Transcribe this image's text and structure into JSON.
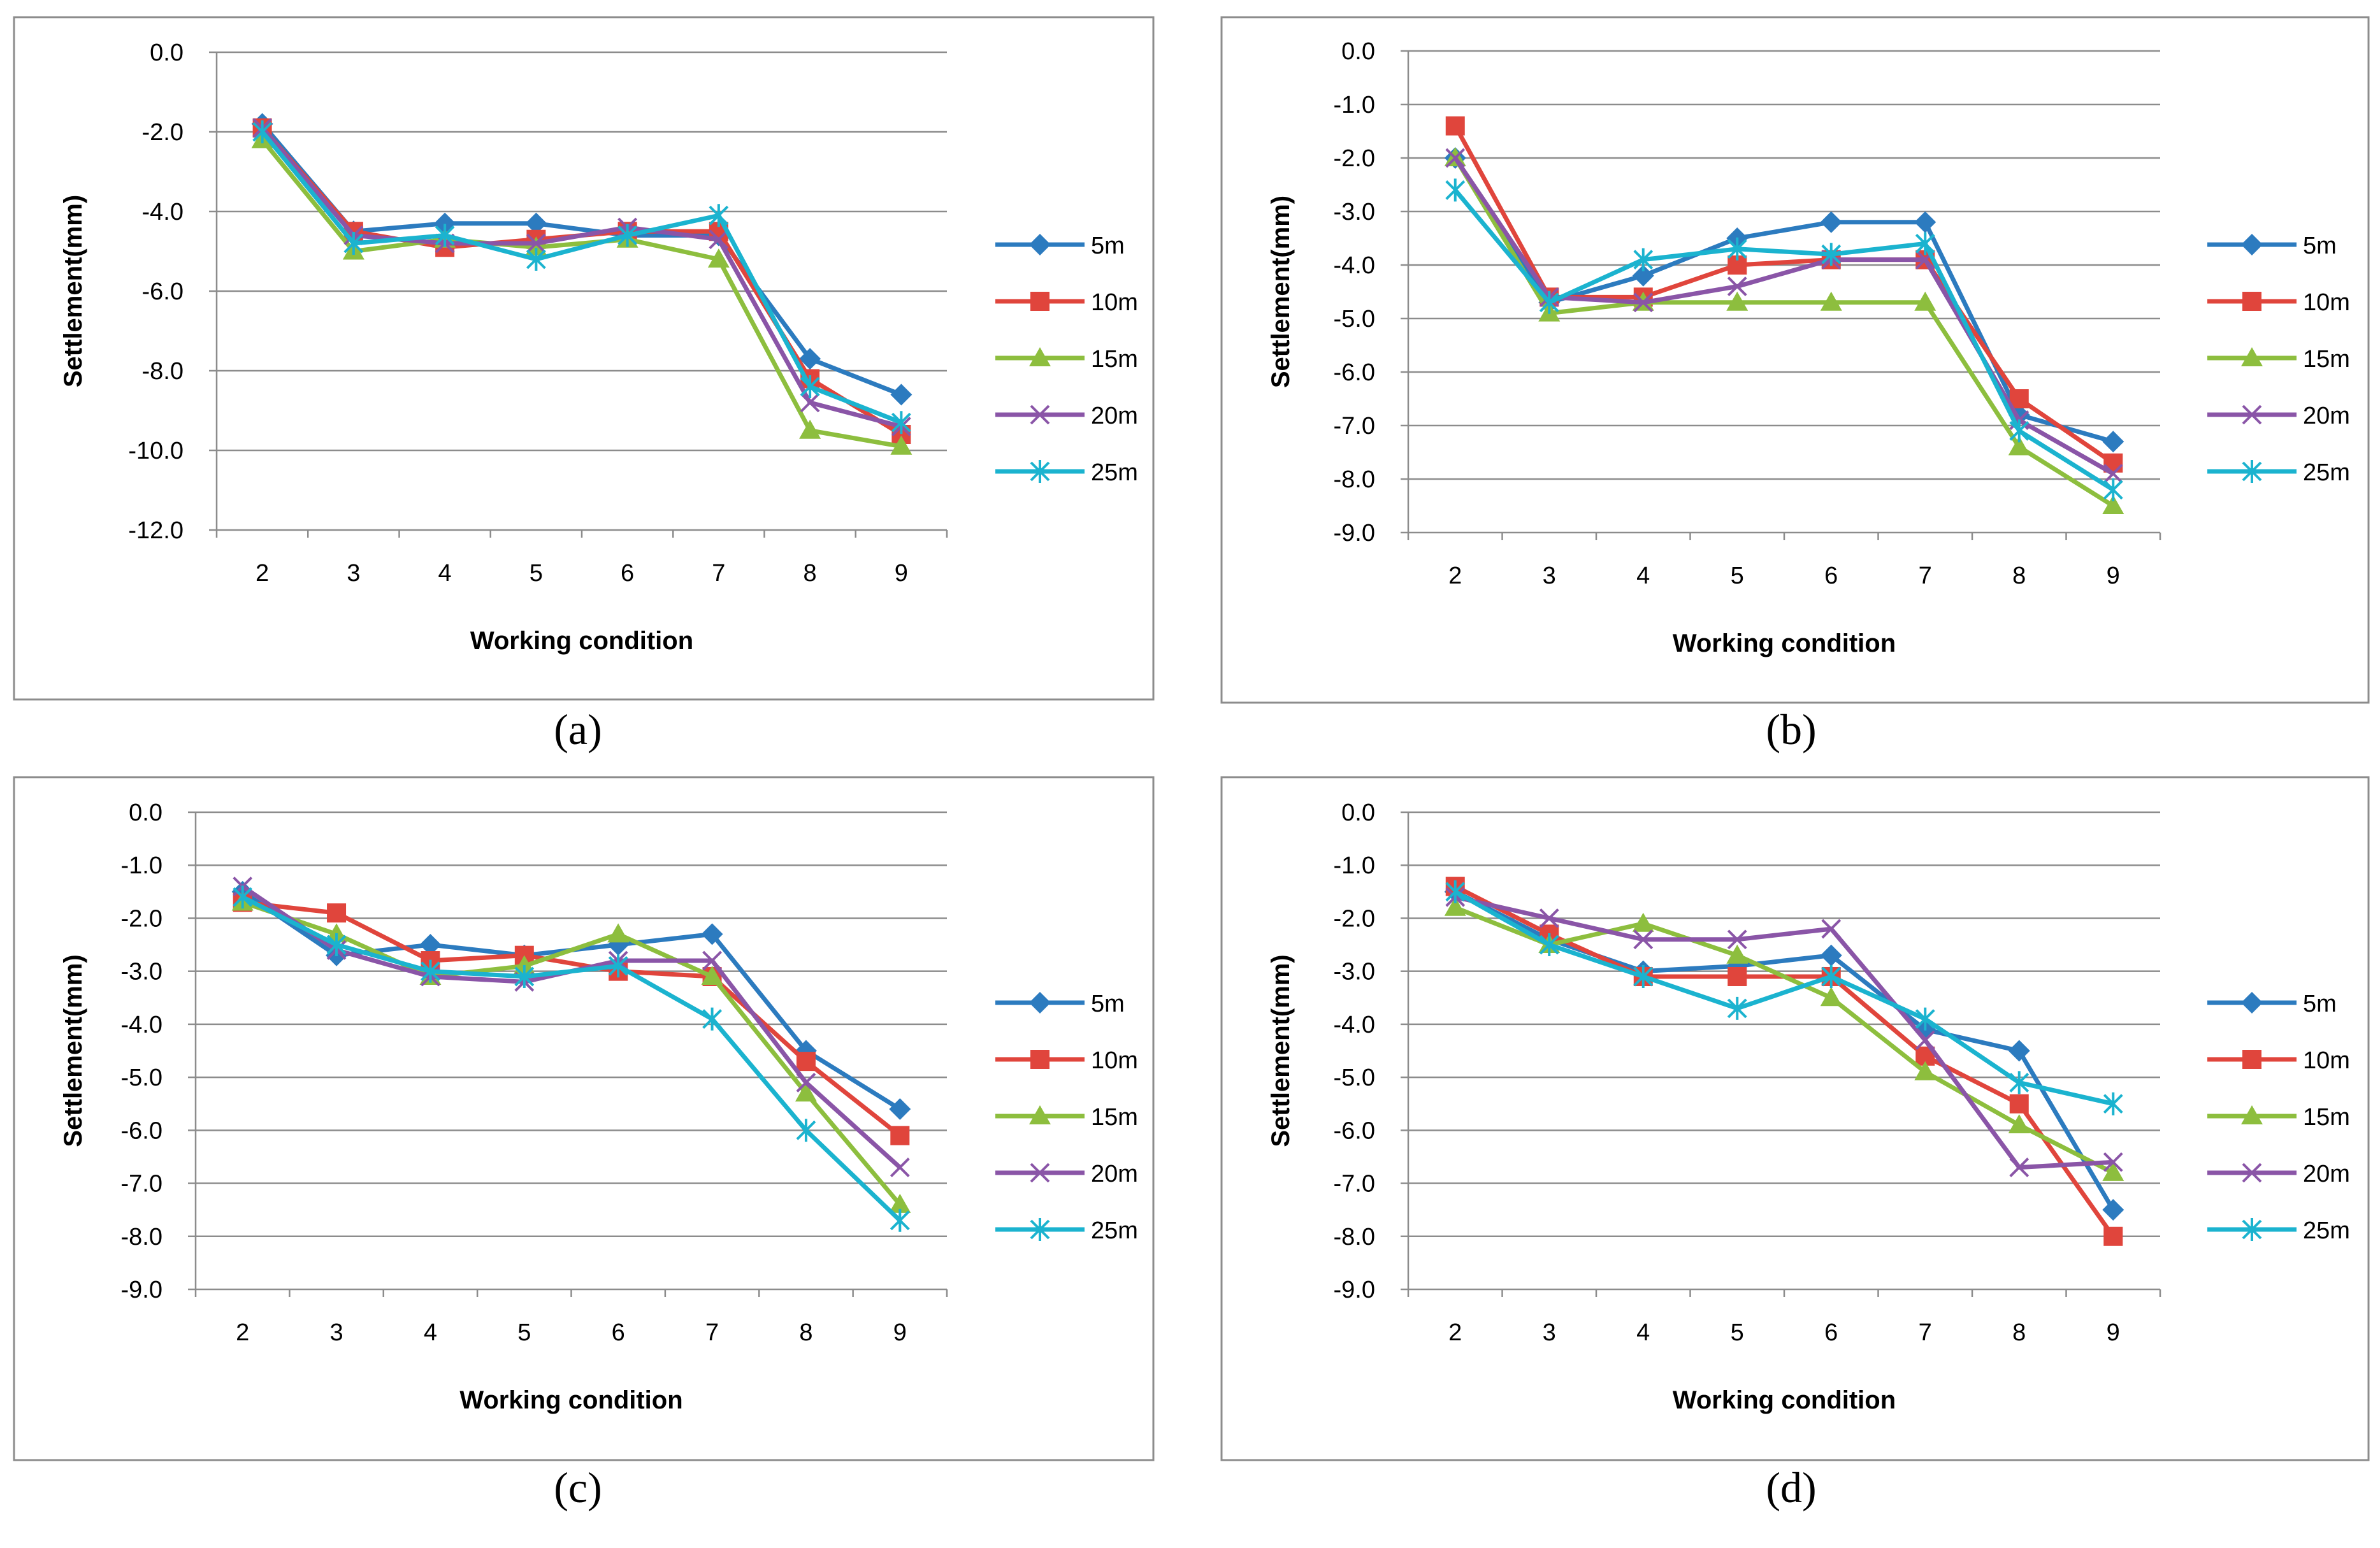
{
  "colors": {
    "5m": "#2C7BBF",
    "10m": "#E0453C",
    "15m": "#8DBE3E",
    "20m": "#8A55A7",
    "25m": "#1BB3CF",
    "grid": "#8c8c8c",
    "frame": "#8c8c8c"
  },
  "chart_data": [
    {
      "id": "a",
      "caption": "(a)",
      "type": "line",
      "xlabel": "Working condition",
      "ylabel": "Settlement(mm)",
      "categories": [
        "2",
        "3",
        "4",
        "5",
        "6",
        "7",
        "8",
        "9"
      ],
      "ylim": [
        -12,
        0
      ],
      "yticks": [
        0,
        -2,
        -4,
        -6,
        -8,
        -10,
        -12
      ],
      "ytick_labels": [
        "0.0",
        "-2.0",
        "-4.0",
        "-6.0",
        "-8.0",
        "-10.0",
        "-12.0"
      ],
      "series": [
        {
          "name": "5m",
          "marker": "diamond",
          "values": [
            -1.8,
            -4.5,
            -4.3,
            -4.3,
            -4.6,
            -4.6,
            -7.7,
            -8.6
          ]
        },
        {
          "name": "10m",
          "marker": "square",
          "values": [
            -1.9,
            -4.5,
            -4.9,
            -4.7,
            -4.5,
            -4.5,
            -8.2,
            -9.6
          ]
        },
        {
          "name": "15m",
          "marker": "triangle",
          "values": [
            -2.2,
            -5.0,
            -4.7,
            -4.9,
            -4.7,
            -5.2,
            -9.5,
            -9.9
          ]
        },
        {
          "name": "20m",
          "marker": "x",
          "values": [
            -1.9,
            -4.6,
            -4.8,
            -4.8,
            -4.4,
            -4.7,
            -8.8,
            -9.4
          ]
        },
        {
          "name": "25m",
          "marker": "star",
          "values": [
            -2.0,
            -4.8,
            -4.6,
            -5.2,
            -4.6,
            -4.1,
            -8.4,
            -9.3
          ]
        }
      ]
    },
    {
      "id": "b",
      "caption": "(b)",
      "type": "line",
      "xlabel": "Working condition",
      "ylabel": "Settlement(mm)",
      "categories": [
        "2",
        "3",
        "4",
        "5",
        "6",
        "7",
        "8",
        "9"
      ],
      "ylim": [
        -9,
        0
      ],
      "yticks": [
        0,
        -1,
        -2,
        -3,
        -4,
        -5,
        -6,
        -7,
        -8,
        -9
      ],
      "ytick_labels": [
        "0.0",
        "-1.0",
        "-2.0",
        "-3.0",
        "-4.0",
        "-5.0",
        "-6.0",
        "-7.0",
        "-8.0",
        "-9.0"
      ],
      "series": [
        {
          "name": "5m",
          "marker": "diamond",
          "values": [
            -2.0,
            -4.7,
            -4.2,
            -3.5,
            -3.2,
            -3.2,
            -6.8,
            -7.3
          ]
        },
        {
          "name": "10m",
          "marker": "square",
          "values": [
            -1.4,
            -4.6,
            -4.6,
            -4.0,
            -3.9,
            -3.9,
            -6.5,
            -7.7
          ]
        },
        {
          "name": "15m",
          "marker": "triangle",
          "values": [
            -2.0,
            -4.9,
            -4.7,
            -4.7,
            -4.7,
            -4.7,
            -7.4,
            -8.5
          ]
        },
        {
          "name": "20m",
          "marker": "x",
          "values": [
            -2.0,
            -4.6,
            -4.7,
            -4.4,
            -3.9,
            -3.9,
            -6.9,
            -7.9
          ]
        },
        {
          "name": "25m",
          "marker": "star",
          "values": [
            -2.6,
            -4.7,
            -3.9,
            -3.7,
            -3.8,
            -3.6,
            -7.1,
            -8.2
          ]
        }
      ]
    },
    {
      "id": "c",
      "caption": "(c)",
      "type": "line",
      "xlabel": "Working condition",
      "ylabel": "Settlement(mm)",
      "categories": [
        "2",
        "3",
        "4",
        "5",
        "6",
        "7",
        "8",
        "9"
      ],
      "ylim": [
        -9,
        0
      ],
      "yticks": [
        0,
        -1,
        -2,
        -3,
        -4,
        -5,
        -6,
        -7,
        -8,
        -9
      ],
      "ytick_labels": [
        "0.0",
        "-1.0",
        "-2.0",
        "-3.0",
        "-4.0",
        "-5.0",
        "-6.0",
        "-7.0",
        "-8.0",
        "-9.0"
      ],
      "series": [
        {
          "name": "5m",
          "marker": "diamond",
          "values": [
            -1.5,
            -2.7,
            -2.5,
            -2.7,
            -2.5,
            -2.3,
            -4.5,
            -5.6
          ]
        },
        {
          "name": "10m",
          "marker": "square",
          "values": [
            -1.7,
            -1.9,
            -2.8,
            -2.7,
            -3.0,
            -3.1,
            -4.7,
            -6.1
          ]
        },
        {
          "name": "15m",
          "marker": "triangle",
          "values": [
            -1.7,
            -2.3,
            -3.1,
            -2.9,
            -2.3,
            -3.1,
            -5.3,
            -7.4
          ]
        },
        {
          "name": "20m",
          "marker": "x",
          "values": [
            -1.4,
            -2.6,
            -3.1,
            -3.2,
            -2.8,
            -2.8,
            -5.1,
            -6.7
          ]
        },
        {
          "name": "25m",
          "marker": "star",
          "values": [
            -1.6,
            -2.5,
            -3.0,
            -3.1,
            -2.9,
            -3.9,
            -6.0,
            -7.7
          ]
        }
      ]
    },
    {
      "id": "d",
      "caption": "(d)",
      "type": "line",
      "xlabel": "Working condition",
      "ylabel": "Settlement(mm)",
      "categories": [
        "2",
        "3",
        "4",
        "5",
        "6",
        "7",
        "8",
        "9"
      ],
      "ylim": [
        -9,
        0
      ],
      "yticks": [
        0,
        -1,
        -2,
        -3,
        -4,
        -5,
        -6,
        -7,
        -8,
        -9
      ],
      "ytick_labels": [
        "0.0",
        "-1.0",
        "-2.0",
        "-3.0",
        "-4.0",
        "-5.0",
        "-6.0",
        "-7.0",
        "-8.0",
        "-9.0"
      ],
      "series": [
        {
          "name": "5m",
          "marker": "diamond",
          "values": [
            -1.5,
            -2.4,
            -3.0,
            -2.9,
            -2.7,
            -4.1,
            -4.5,
            -7.5
          ]
        },
        {
          "name": "10m",
          "marker": "square",
          "values": [
            -1.4,
            -2.3,
            -3.1,
            -3.1,
            -3.1,
            -4.6,
            -5.5,
            -8.0
          ]
        },
        {
          "name": "15m",
          "marker": "triangle",
          "values": [
            -1.8,
            -2.5,
            -2.1,
            -2.7,
            -3.5,
            -4.9,
            -5.9,
            -6.8
          ]
        },
        {
          "name": "20m",
          "marker": "x",
          "values": [
            -1.6,
            -2.0,
            -2.4,
            -2.4,
            -2.2,
            -4.3,
            -6.7,
            -6.6
          ]
        },
        {
          "name": "25m",
          "marker": "star",
          "values": [
            -1.5,
            -2.5,
            -3.1,
            -3.7,
            -3.1,
            -3.9,
            -5.1,
            -5.5
          ]
        }
      ]
    }
  ]
}
